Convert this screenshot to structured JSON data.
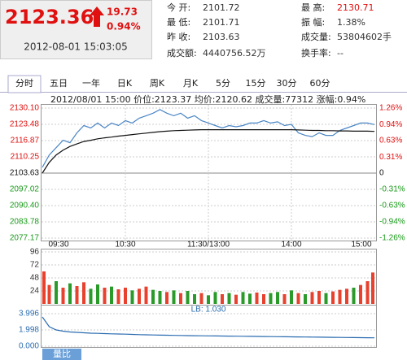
{
  "quote": {
    "price": "2123.36",
    "change": "19.73",
    "change_pct": "0.94%",
    "time": "2012-08-01 15:03:05"
  },
  "stats": [
    [
      [
        "今 开:",
        "2101.72"
      ],
      [
        "最 高:",
        "2130.71"
      ]
    ],
    [
      [
        "最 低:",
        "2101.71"
      ],
      [
        "振 幅:",
        "1.38%"
      ]
    ],
    [
      [
        "昨 收:",
        "2103.63"
      ],
      [
        "成交量:",
        "53804602手"
      ]
    ],
    [
      [
        "成交额:",
        "4440756.52万"
      ],
      [
        "换手率:",
        "--"
      ]
    ]
  ],
  "tabs": [
    "分时",
    "五日",
    "一年",
    "日K",
    "周K",
    "月K",
    "5分",
    "15分",
    "30分",
    "60分"
  ],
  "info_line": "2012/08/01 15:00  价位:2123.37  均价:2120.62  成交量:77312  涨幅:0.94%",
  "footer_tab": "量比",
  "chart_data": [
    {
      "type": "line",
      "categories": [
        "09:30",
        null,
        null,
        null,
        null,
        null,
        null,
        null,
        null,
        null,
        null,
        null,
        "10:30",
        null,
        null,
        null,
        null,
        null,
        null,
        null,
        null,
        null,
        null,
        null,
        "11:30/13:00",
        null,
        null,
        null,
        null,
        null,
        null,
        null,
        null,
        null,
        null,
        null,
        "14:00",
        null,
        null,
        null,
        null,
        null,
        null,
        null,
        null,
        null,
        null,
        null,
        "15:00"
      ],
      "series": [
        {
          "color": "#4a86c5",
          "values": [
            2106,
            2111,
            2114,
            2117,
            2116,
            2120,
            2123,
            2122,
            2124,
            2122,
            2124,
            2123,
            2125,
            2124,
            2126,
            2127,
            2128,
            2129.5,
            2128,
            2127,
            2128,
            2126,
            2127,
            2125,
            2124,
            2123,
            2122,
            2123,
            2122.5,
            2123,
            2124,
            2124,
            2125,
            2124,
            2124.5,
            2123,
            2123.5,
            2120,
            2119,
            2118.5,
            2120,
            2119,
            2119,
            2121,
            2122,
            2123,
            2124,
            2124,
            2123.37
          ]
        },
        {
          "color": "#111111",
          "values": [
            2103.63,
            2108,
            2111,
            2113,
            2114.5,
            2115.5,
            2116.5,
            2117,
            2117.6,
            2118,
            2118.3,
            2118.7,
            2119,
            2119.3,
            2119.6,
            2119.9,
            2120.2,
            2120.5,
            2120.7,
            2120.9,
            2121,
            2121.1,
            2121.2,
            2121.3,
            2121.3,
            2121.3,
            2121.3,
            2121.3,
            2121.3,
            2121.3,
            2121.3,
            2121.3,
            2121.3,
            2121.3,
            2121.3,
            2121.3,
            2121.3,
            2121.2,
            2121.1,
            2121,
            2121,
            2120.9,
            2120.9,
            2120.8,
            2120.8,
            2120.7,
            2120.7,
            2120.7,
            2120.62
          ]
        }
      ],
      "ylim": [
        2077.17,
        2130.1
      ],
      "yticks": [
        {
          "value": 2077.17,
          "label": "2077.17"
        },
        {
          "value": 2083.78,
          "label": "2083.78"
        },
        {
          "value": 2090.4,
          "label": "2090.40"
        },
        {
          "value": 2097.02,
          "label": "2097.02"
        },
        {
          "value": 2103.63,
          "label": "2103.63"
        },
        {
          "value": 2110.25,
          "label": "2110.25"
        },
        {
          "value": 2116.87,
          "label": "2116.87"
        },
        {
          "value": 2123.48,
          "label": "2123.48"
        },
        {
          "value": 2130.1,
          "label": "2130.10"
        }
      ],
      "y2lim": [
        -1.26,
        1.26
      ],
      "y2ticks": [
        {
          "value": -1.26,
          "label": "-1.26%"
        },
        {
          "value": -0.94,
          "label": "-0.94%"
        },
        {
          "value": -0.63,
          "label": "-0.63%"
        },
        {
          "value": -0.31,
          "label": "-0.31%"
        },
        0,
        {
          "value": 0.31,
          "label": "0.31%"
        },
        {
          "value": 0.63,
          "label": "0.63%"
        },
        {
          "value": 0.94,
          "label": "0.94%"
        },
        {
          "value": 1.26,
          "label": "1.26%"
        }
      ],
      "grid": true
    },
    {
      "type": "bar",
      "values": [
        60,
        35,
        42,
        30,
        38,
        33,
        40,
        28,
        36,
        30,
        32,
        27,
        30,
        25,
        28,
        32,
        26,
        24,
        22,
        25,
        20,
        24,
        18,
        20,
        16,
        22,
        18,
        20,
        17,
        22,
        19,
        21,
        18,
        20,
        22,
        18,
        25,
        20,
        18,
        22,
        24,
        20,
        23,
        26,
        28,
        30,
        35,
        42,
        58
      ],
      "colors": [
        "#e8412e",
        "#e8412e",
        "#2a9a2a",
        "#e8412e",
        "#2a9a2a",
        "#e8412e",
        "#e8412e",
        "#2a9a2a",
        "#2a9a2a",
        "#e8412e",
        "#2a9a2a",
        "#e8412e",
        "#e8412e",
        "#2a9a2a",
        "#e8412e",
        "#e8412e",
        "#2a9a2a",
        "#2a9a2a",
        "#e8412e",
        "#2a9a2a",
        "#e8412e",
        "#2a9a2a",
        "#2a9a2a",
        "#e8412e",
        "#2a9a2a",
        "#2a9a2a",
        "#e8412e",
        "#2a9a2a",
        "#e8412e",
        "#2a9a2a",
        "#2a9a2a",
        "#e8412e",
        "#e8412e",
        "#2a9a2a",
        "#2a9a2a",
        "#e8412e",
        "#2a9a2a",
        "#e8412e",
        "#2a9a2a",
        "#e8412e",
        "#e8412e",
        "#2a9a2a",
        "#e8412e",
        "#e8412e",
        "#e8412e",
        "#2a9a2a",
        "#e8412e",
        "#e8412e",
        "#e8412e"
      ],
      "ylim": [
        0,
        96
      ],
      "yticks": [
        24,
        48,
        72,
        96
      ],
      "grid": true
    },
    {
      "type": "line",
      "annotation": "LB: 1.030",
      "series": [
        {
          "color": "#2b6cb0",
          "values": [
            3.6,
            2.4,
            2.0,
            1.85,
            1.75,
            1.7,
            1.65,
            1.6,
            1.58,
            1.55,
            1.52,
            1.5,
            1.48,
            1.45,
            1.42,
            1.4,
            1.38,
            1.36,
            1.35,
            1.33,
            1.32,
            1.3,
            1.29,
            1.28,
            1.27,
            1.26,
            1.25,
            1.24,
            1.23,
            1.22,
            1.21,
            1.2,
            1.19,
            1.18,
            1.17,
            1.16,
            1.15,
            1.14,
            1.13,
            1.12,
            1.11,
            1.1,
            1.09,
            1.08,
            1.07,
            1.06,
            1.05,
            1.04,
            1.03
          ]
        }
      ],
      "ylim": [
        0,
        3.996
      ],
      "yticks": [
        {
          "value": 0,
          "label": "0.000"
        },
        {
          "value": 1.998,
          "label": "1.998"
        },
        {
          "value": 3.996,
          "label": "3.996"
        }
      ],
      "grid": true
    }
  ]
}
